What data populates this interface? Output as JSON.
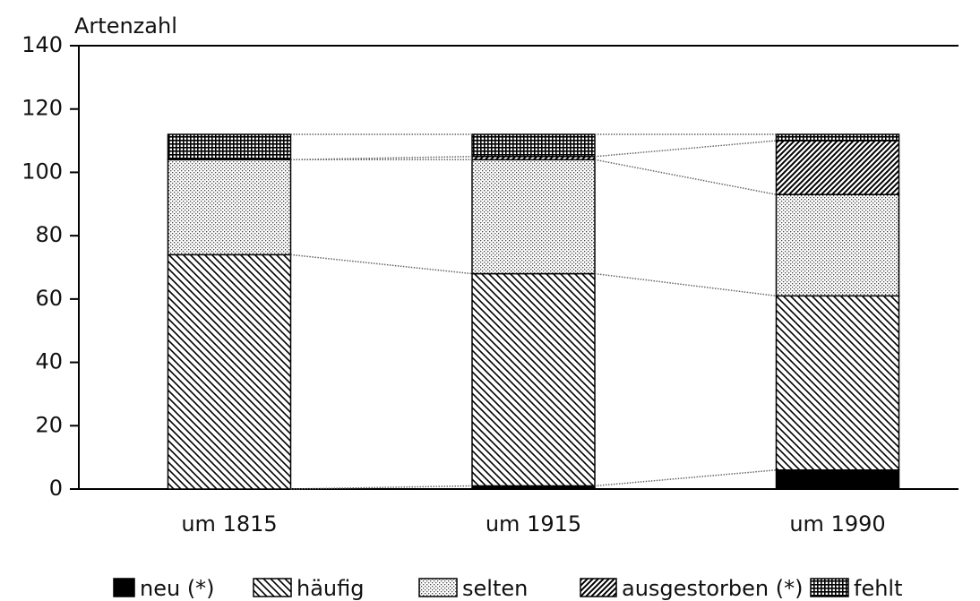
{
  "chart_data": {
    "type": "stacked-bar",
    "ylabel": "Artenzahl",
    "categories": [
      "um 1815",
      "um 1915",
      "um 1990"
    ],
    "series": [
      {
        "name": "neu (*)",
        "color": "#000000",
        "pattern": "solid",
        "values": [
          0,
          1,
          6
        ]
      },
      {
        "name": "häufig",
        "color": "#000000",
        "pattern": "hatch-back",
        "values": [
          74,
          67,
          55
        ]
      },
      {
        "name": "selten",
        "color": "#000000",
        "pattern": "dots",
        "values": [
          30,
          36,
          32
        ]
      },
      {
        "name": "ausgestorben (*)",
        "color": "#000000",
        "pattern": "hatch",
        "values": [
          0,
          1,
          17
        ]
      },
      {
        "name": "fehlt",
        "color": "#000000",
        "pattern": "grid",
        "values": [
          8,
          7,
          2
        ]
      }
    ],
    "ylim": [
      0,
      140
    ],
    "yticks": [
      0,
      20,
      40,
      60,
      80,
      100,
      120,
      140
    ]
  }
}
